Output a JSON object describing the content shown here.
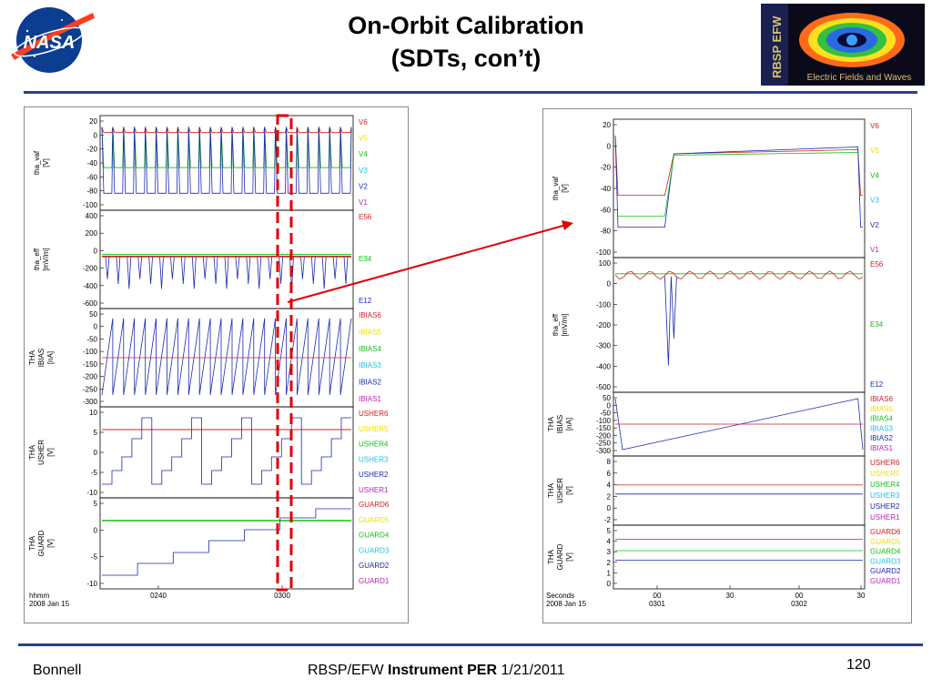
{
  "slide": {
    "title_line1": "On-Orbit Calibration",
    "title_line2": "(SDTs, con’t)",
    "footer_left": "Bonnell",
    "footer_center_prefix": "RBSP/EFW ",
    "footer_center_bold": "Instrument PER",
    "footer_center_suffix": " 1/21/2011",
    "page_number": "120",
    "logo_nasa_text": "NASA",
    "logo_rbsp_side": "RBSP EFW",
    "logo_rbsp_caption": "Electric Fields and Waves"
  },
  "colors": {
    "rule": "#2b3f8f",
    "arrow": "#e00000",
    "highlight": "#e00000",
    "series": [
      "#d02020",
      "#f0e000",
      "#10c010",
      "#20c0e0",
      "#1a2ab0",
      "#c020c0"
    ]
  },
  "chart_data": [
    {
      "type": "line",
      "xlabel_left": "hhmm",
      "xlabel_date": "2008 Jan 15",
      "x_ticks": [
        "0240",
        "0300"
      ],
      "panels": [
        {
          "ylabel": "tha_vaf",
          "yunit": "[V]",
          "y_ticks": [
            "20",
            "0",
            "-20",
            "-40",
            "-60",
            "-80",
            "-100"
          ],
          "legend": [
            "V6",
            "V5",
            "V4",
            "V3",
            "V2",
            "V1"
          ]
        },
        {
          "ylabel": "tha_eff",
          "yunit": "[mV/m]",
          "y_ticks": [
            "400",
            "200",
            "0",
            "-200",
            "-400",
            "-600"
          ],
          "legend": [
            "E56",
            "E34",
            "E12"
          ]
        },
        {
          "ylabel": "THA",
          "ylabel2": "IBIAS",
          "yunit": "[nA]",
          "y_ticks": [
            "50",
            "0",
            "-50",
            "-100",
            "-150",
            "-200",
            "-250",
            "-300"
          ],
          "legend": [
            "IBIAS6",
            "IBIAS5",
            "IBIAS4",
            "IBIAS3",
            "IBIAS2",
            "IBIAS1"
          ]
        },
        {
          "ylabel": "THA",
          "ylabel2": "USHER",
          "yunit": "[V]",
          "y_ticks": [
            "10",
            "5",
            "0",
            "-5",
            "-10"
          ],
          "legend": [
            "USHER6",
            "USHER5",
            "USHER4",
            "USHER3",
            "USHER2",
            "USHER1"
          ]
        },
        {
          "ylabel": "THA",
          "ylabel2": "GUARD",
          "yunit": "[V]",
          "y_ticks": [
            "5",
            "0",
            "-5",
            "-10"
          ],
          "legend": [
            "GUARD6",
            "GUARD5",
            "GUARD4",
            "GUARD3",
            "GUARD2",
            "GUARD1"
          ]
        }
      ]
    },
    {
      "type": "line",
      "xlabel_left": "Seconds",
      "xlabel_date": "2008 Jan 15",
      "x_ticks": [
        [
          "00",
          "0301"
        ],
        [
          "30",
          ""
        ],
        [
          "00",
          "0302"
        ],
        [
          "30",
          ""
        ]
      ],
      "panels": [
        {
          "ylabel": "tha_vaf",
          "yunit": "[V]",
          "y_ticks": [
            "20",
            "0",
            "-20",
            "-40",
            "-60",
            "-80",
            "-100"
          ],
          "legend": [
            "V6",
            "V5",
            "V4",
            "V3",
            "V2",
            "V1"
          ]
        },
        {
          "ylabel": "tha_eff",
          "yunit": "[mV/m]",
          "y_ticks": [
            "100",
            "0",
            "-100",
            "-200",
            "-300",
            "-400",
            "-500"
          ],
          "legend": [
            "E56",
            "E34",
            "E12"
          ]
        },
        {
          "ylabel": "THA",
          "ylabel2": "IBIAS",
          "yunit": "[nA]",
          "y_ticks": [
            "50",
            "0",
            "-50",
            "-100",
            "-150",
            "-200",
            "-250",
            "-300"
          ],
          "legend": [
            "IBIAS6",
            "IBIAS5",
            "IBIAS4",
            "IBIAS3",
            "IBIAS2",
            "IBIAS1"
          ]
        },
        {
          "ylabel": "THA",
          "ylabel2": "USHER",
          "yunit": "[V]",
          "y_ticks": [
            "8",
            "6",
            "4",
            "2",
            "0",
            "-2"
          ],
          "legend": [
            "USHER6",
            "USHER5",
            "USHER4",
            "USHER3",
            "USHER2",
            "USHER1"
          ]
        },
        {
          "ylabel": "THA",
          "ylabel2": "GUARD",
          "yunit": "[V]",
          "y_ticks": [
            "5",
            "4",
            "3",
            "2",
            "1",
            "0"
          ],
          "legend": [
            "GUARD6",
            "GUARD5",
            "GUARD4",
            "GUARD3",
            "GUARD2",
            "GUARD1"
          ]
        }
      ]
    }
  ]
}
